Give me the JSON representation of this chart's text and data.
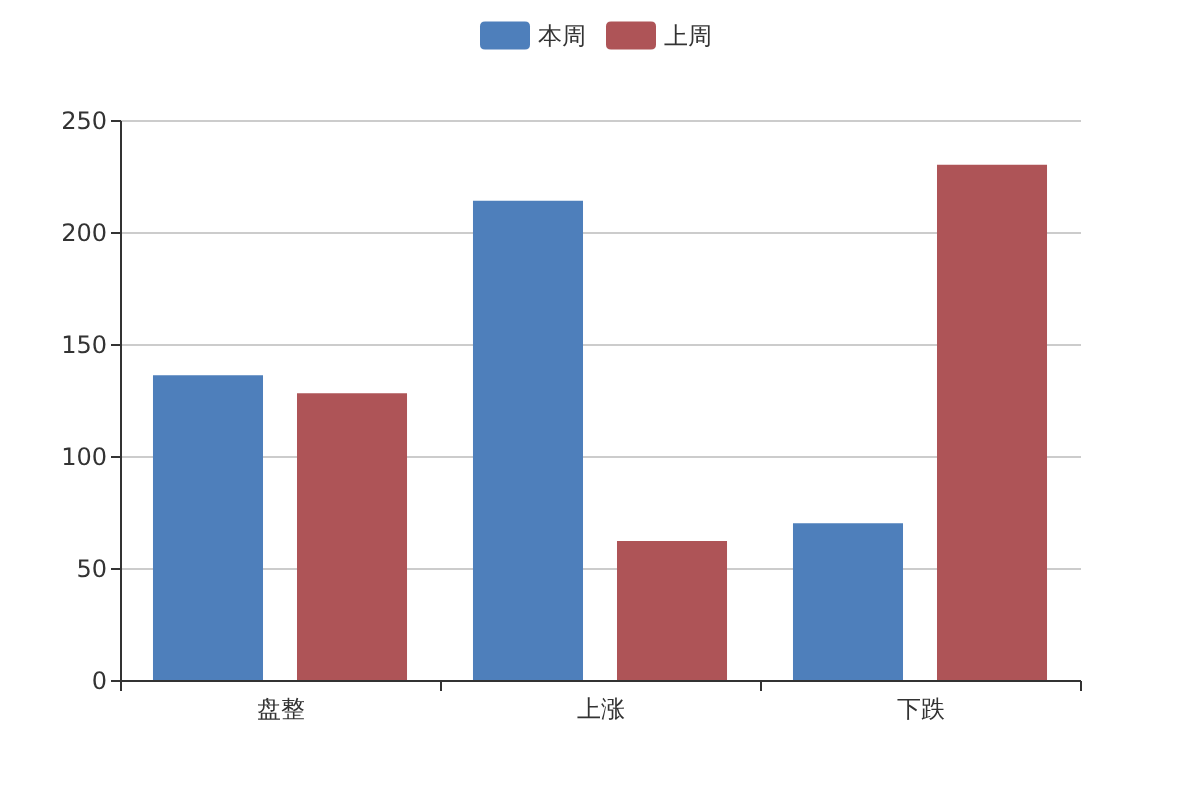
{
  "chart_data": {
    "type": "bar",
    "categories": [
      "盘整",
      "上涨",
      "下跌"
    ],
    "series": [
      {
        "name": "本周",
        "color": "#4e7fbb",
        "values": [
          136,
          214,
          70
        ]
      },
      {
        "name": "上周",
        "color": "#ae5457",
        "values": [
          128,
          62,
          230
        ]
      }
    ],
    "ylim": [
      0,
      250
    ],
    "yticks": [
      0,
      50,
      100,
      150,
      200,
      250
    ],
    "grid": "y",
    "legend": "top"
  }
}
